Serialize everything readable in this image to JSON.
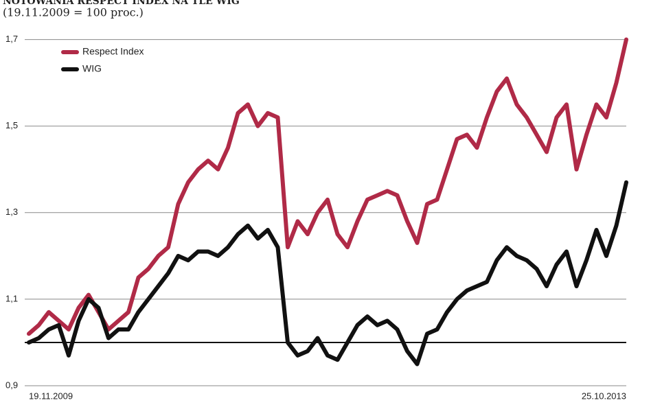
{
  "chart_data": {
    "type": "line",
    "title": "NOTOWANIA RESPECT INDEX NA TLE WIG",
    "subtitle": "(19.11.2009 = 100 proc.)",
    "categories": [
      "19.11.2009",
      null,
      null,
      null,
      null,
      null,
      null,
      null,
      null,
      null,
      null,
      null,
      null,
      null,
      null,
      null,
      null,
      null,
      null,
      null,
      null,
      null,
      null,
      null,
      null,
      null,
      null,
      null,
      null,
      null,
      null,
      null,
      null,
      null,
      null,
      null,
      null,
      null,
      null,
      null,
      null,
      null,
      null,
      null,
      null,
      null,
      null,
      null,
      null,
      null,
      null,
      null,
      null,
      null,
      null,
      null,
      null,
      null,
      null,
      null,
      "25.10.2013"
    ],
    "series": [
      {
        "name": "Respect Index",
        "color": "#b02a47",
        "values": [
          1.02,
          1.04,
          1.07,
          1.05,
          1.03,
          1.08,
          1.11,
          1.07,
          1.03,
          1.05,
          1.07,
          1.15,
          1.17,
          1.2,
          1.22,
          1.32,
          1.37,
          1.4,
          1.42,
          1.4,
          1.45,
          1.53,
          1.55,
          1.5,
          1.53,
          1.52,
          1.22,
          1.28,
          1.25,
          1.3,
          1.33,
          1.25,
          1.22,
          1.28,
          1.33,
          1.34,
          1.35,
          1.34,
          1.28,
          1.23,
          1.32,
          1.33,
          1.4,
          1.47,
          1.48,
          1.45,
          1.52,
          1.58,
          1.61,
          1.55,
          1.52,
          1.48,
          1.44,
          1.52,
          1.55,
          1.4,
          1.48,
          1.55,
          1.52,
          1.6,
          1.7
        ]
      },
      {
        "name": "WIG",
        "color": "#111111",
        "values": [
          1.0,
          1.01,
          1.03,
          1.04,
          0.97,
          1.05,
          1.1,
          1.08,
          1.01,
          1.03,
          1.03,
          1.07,
          1.1,
          1.13,
          1.16,
          1.2,
          1.19,
          1.21,
          1.21,
          1.2,
          1.22,
          1.25,
          1.27,
          1.24,
          1.26,
          1.22,
          1.0,
          0.97,
          0.98,
          1.01,
          0.97,
          0.96,
          1.0,
          1.04,
          1.06,
          1.04,
          1.05,
          1.03,
          0.98,
          0.95,
          1.02,
          1.03,
          1.07,
          1.1,
          1.12,
          1.13,
          1.14,
          1.19,
          1.22,
          1.2,
          1.19,
          1.17,
          1.13,
          1.18,
          1.21,
          1.13,
          1.19,
          1.26,
          1.2,
          1.27,
          1.37
        ]
      }
    ],
    "ylim": [
      0.9,
      1.72
    ],
    "yticks": [
      {
        "value": 0.9,
        "label": "0,9"
      },
      {
        "value": 1.1,
        "label": "1,1"
      },
      {
        "value": 1.3,
        "label": "1,3"
      },
      {
        "value": 1.5,
        "label": "1,5"
      },
      {
        "value": 1.7,
        "label": "1,7"
      }
    ],
    "reference_line": 1.0,
    "grid": true,
    "legend": "top-left"
  }
}
